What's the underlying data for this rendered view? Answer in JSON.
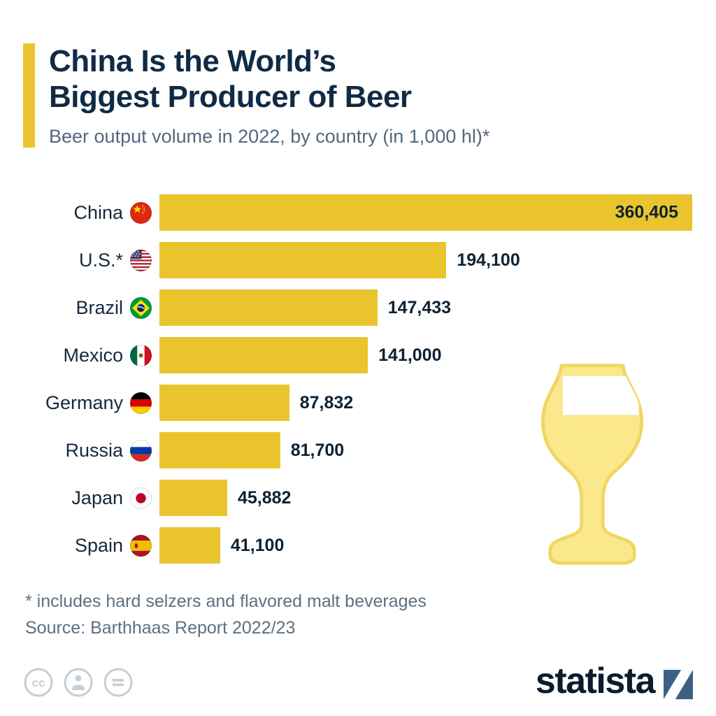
{
  "accent_color": "#E9C42D",
  "header": {
    "title_line1": "China Is the World’s",
    "title_line2": "Biggest Producer of Beer",
    "subtitle": "Beer output volume in 2022, by country (in 1,000 hl)*"
  },
  "chart_data": {
    "type": "bar",
    "orientation": "horizontal",
    "title": "China Is the World’s Biggest Producer of Beer",
    "unit": "1,000 hl",
    "year": "2022",
    "categories": [
      "China",
      "U.S.*",
      "Brazil",
      "Mexico",
      "Germany",
      "Russia",
      "Japan",
      "Spain"
    ],
    "values": [
      360405,
      194100,
      147433,
      141000,
      87832,
      81700,
      45882,
      41100
    ],
    "value_labels": [
      "360,405",
      "194,100",
      "147,433",
      "141,000",
      "87,832",
      "81,700",
      "45,882",
      "41,100"
    ],
    "flags": [
      "china",
      "us",
      "brazil",
      "mexico",
      "germany",
      "russia",
      "japan",
      "spain"
    ],
    "bar_color": "#E9C42D",
    "xlim": [
      0,
      360405
    ],
    "grid": false,
    "legend": false
  },
  "footer": {
    "footnote": "* includes hard selzers and flavored malt beverages",
    "source": "Source: Barthhaas Report 2022/23",
    "logo_text": "statista"
  }
}
